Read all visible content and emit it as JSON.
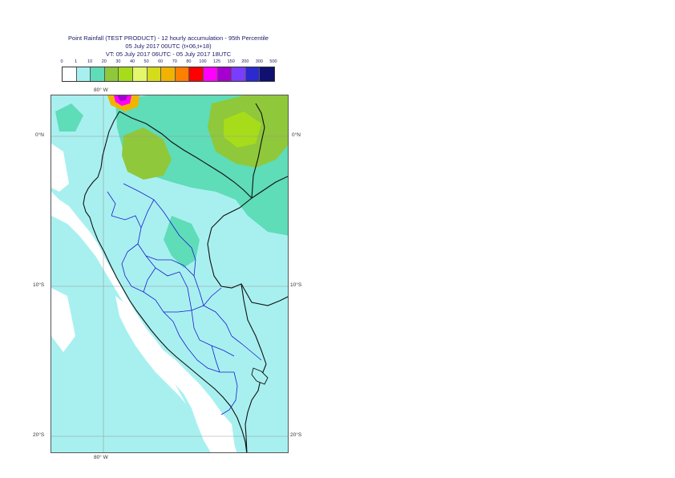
{
  "title": {
    "line1": "Point Rainfall (TEST PRODUCT) - 12 hourly accumulation - 95th Percentile",
    "line2": "05 July 2017 00UTC (t+06,t+18)",
    "line3": "VT: 05 July 2017 06UTC - 05 July 2017 18UTC"
  },
  "legend": {
    "thresholds": [
      "0",
      "1",
      "10",
      "20",
      "30",
      "40",
      "50",
      "60",
      "70",
      "80",
      "100",
      "125",
      "150",
      "200",
      "300",
      "500"
    ],
    "colors": [
      "#ffffff",
      "#a8f0f0",
      "#5fdcb8",
      "#8fc83a",
      "#a6dc1a",
      "#e4f66a",
      "#d4dc1c",
      "#f0b400",
      "#ff7f00",
      "#ff0000",
      "#ff00ff",
      "#a600d0",
      "#7a3cff",
      "#2a2ad0",
      "#101070"
    ]
  },
  "map": {
    "lon_top": "80° W",
    "lon_bottom": "80° W",
    "lat_left": [
      "0°N",
      "10°S",
      "20°S"
    ],
    "lat_right": [
      "0°N",
      "10°S",
      "20°S"
    ]
  }
}
